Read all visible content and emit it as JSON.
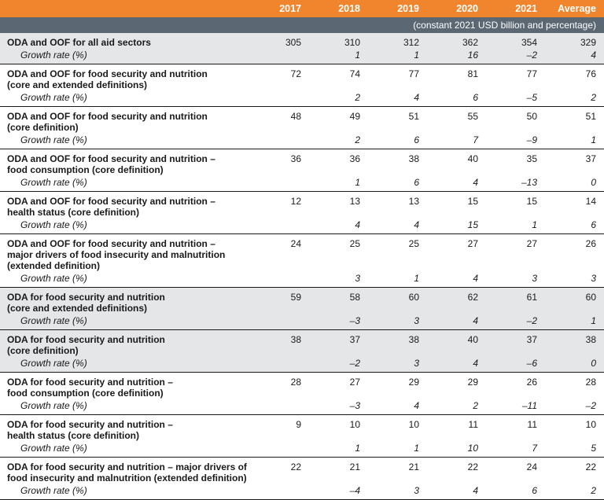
{
  "header": {
    "columns": [
      "",
      "2017",
      "2018",
      "2019",
      "2020",
      "2021",
      "Average"
    ],
    "units": "(constant 2021 USD billion and percentage)"
  },
  "rows": [
    {
      "label": "ODA and OOF for all aid sectors",
      "values": [
        "305",
        "310",
        "312",
        "362",
        "354",
        "329"
      ],
      "growth_label": "Growth rate (%)",
      "growth": [
        "",
        "1",
        "1",
        "16",
        "–2",
        "4"
      ]
    },
    {
      "label": "ODA and OOF for food security and nutrition\n(core and extended definitions)",
      "values": [
        "72",
        "74",
        "77",
        "81",
        "77",
        "76"
      ],
      "growth_label": "Growth rate (%)",
      "growth": [
        "",
        "2",
        "4",
        "6",
        "–5",
        "2"
      ]
    },
    {
      "label": "ODA and OOF for food security and nutrition\n(core definition)",
      "values": [
        "48",
        "49",
        "51",
        "55",
        "50",
        "51"
      ],
      "growth_label": "Growth rate (%)",
      "growth": [
        "",
        "2",
        "6",
        "7",
        "–9",
        "1"
      ]
    },
    {
      "label": "ODA and OOF for food security and nutrition –\nfood consumption (core definition)",
      "values": [
        "36",
        "36",
        "38",
        "40",
        "35",
        "37"
      ],
      "growth_label": "Growth rate (%)",
      "growth": [
        "",
        "1",
        "6",
        "4",
        "–13",
        "0"
      ]
    },
    {
      "label": "ODA and OOF for food security and nutrition –\nhealth status (core definition)",
      "values": [
        "12",
        "13",
        "13",
        "15",
        "15",
        "14"
      ],
      "growth_label": "Growth rate (%)",
      "growth": [
        "",
        "4",
        "4",
        "15",
        "1",
        "6"
      ]
    },
    {
      "label": "ODA and OOF for food security and nutrition –\nmajor drivers of food insecurity and malnutrition\n(extended definition)",
      "values": [
        "24",
        "25",
        "25",
        "27",
        "27",
        "26"
      ],
      "growth_label": "Growth rate (%)",
      "growth": [
        "",
        "3",
        "1",
        "4",
        "3",
        "3"
      ]
    },
    {
      "label": "ODA for food security and nutrition\n(core and extended definitions)",
      "values": [
        "59",
        "58",
        "60",
        "62",
        "61",
        "60"
      ],
      "growth_label": "Growth rate (%)",
      "growth": [
        "",
        "–3",
        "3",
        "4",
        "–2",
        "1"
      ]
    },
    {
      "label": "ODA for food security and nutrition\n(core definition)",
      "values": [
        "38",
        "37",
        "38",
        "40",
        "37",
        "38"
      ],
      "growth_label": "Growth rate (%)",
      "growth": [
        "",
        "–2",
        "3",
        "4",
        "–6",
        "0"
      ]
    },
    {
      "label": "ODA for food security and nutrition –\nfood consumption (core definition)",
      "values": [
        "28",
        "27",
        "29",
        "29",
        "26",
        "28"
      ],
      "growth_label": "Growth rate (%)",
      "growth": [
        "",
        "–3",
        "4",
        "2",
        "–11",
        "–2"
      ]
    },
    {
      "label": "ODA for food security and nutrition –\nhealth status (core definition)",
      "values": [
        "9",
        "10",
        "10",
        "11",
        "11",
        "10"
      ],
      "growth_label": "Growth rate (%)",
      "growth": [
        "",
        "1",
        "1",
        "10",
        "7",
        "5"
      ]
    },
    {
      "label": "ODA for food security and nutrition – major drivers of\nfood insecurity and malnutrition (extended definition)",
      "values": [
        "22",
        "21",
        "21",
        "22",
        "24",
        "22"
      ],
      "growth_label": "Growth rate (%)",
      "growth": [
        "",
        "–4",
        "3",
        "4",
        "6",
        "2"
      ]
    }
  ]
}
